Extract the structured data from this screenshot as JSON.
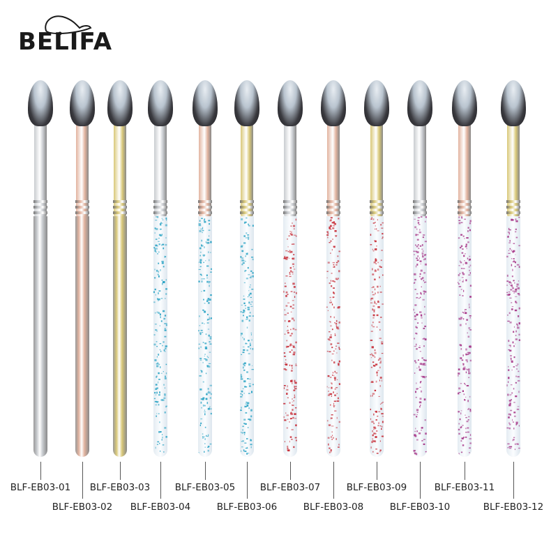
{
  "logo": {
    "text": "BELIFA"
  },
  "brushes": [
    {
      "label": "BLF-EB03-01",
      "ferrule": "#c9ccd0",
      "handle": "metal",
      "handle_color": "#c9ccd0"
    },
    {
      "label": "BLF-EB03-02",
      "ferrule": "#e2b39f",
      "handle": "metal",
      "handle_color": "#e2b39f"
    },
    {
      "label": "BLF-EB03-03",
      "ferrule": "#d9c878",
      "handle": "metal",
      "handle_color": "#d9c878"
    },
    {
      "label": "BLF-EB03-04",
      "ferrule": "#c9ccd0",
      "handle": "glitter",
      "handle_color": "#2aa3c4"
    },
    {
      "label": "BLF-EB03-05",
      "ferrule": "#e2b39f",
      "handle": "glitter",
      "handle_color": "#2aa3c4"
    },
    {
      "label": "BLF-EB03-06",
      "ferrule": "#d9c878",
      "handle": "glitter",
      "handle_color": "#2aa3c4"
    },
    {
      "label": "BLF-EB03-07",
      "ferrule": "#c9ccd0",
      "handle": "glitter",
      "handle_color": "#c8323c"
    },
    {
      "label": "BLF-EB03-08",
      "ferrule": "#e2b39f",
      "handle": "glitter",
      "handle_color": "#c8323c"
    },
    {
      "label": "BLF-EB03-09",
      "ferrule": "#d9c878",
      "handle": "glitter",
      "handle_color": "#c8323c"
    },
    {
      "label": "BLF-EB03-10",
      "ferrule": "#c9ccd0",
      "handle": "glitter",
      "handle_color": "#a83a8a"
    },
    {
      "label": "BLF-EB03-11",
      "ferrule": "#e2b39f",
      "handle": "glitter",
      "handle_color": "#a83a8a"
    },
    {
      "label": "BLF-EB03-12",
      "ferrule": "#d9c878",
      "handle": "glitter",
      "handle_color": "#a83a8a"
    }
  ]
}
